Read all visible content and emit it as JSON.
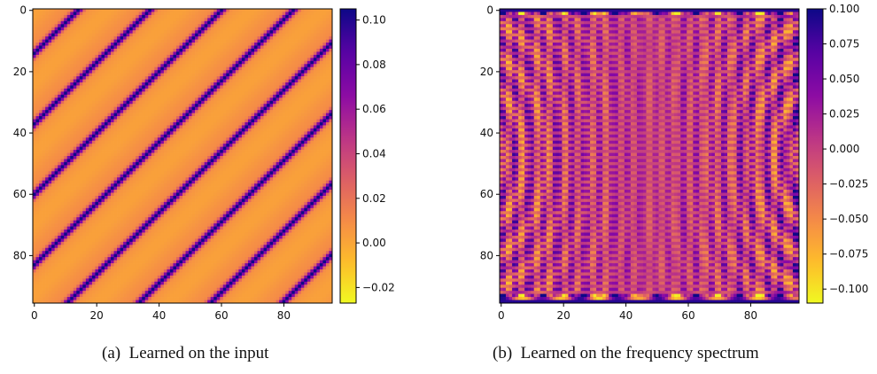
{
  "chart_data": [
    {
      "type": "heatmap",
      "panel": "a",
      "caption_label": "(a)",
      "caption_text": "Learned on the input",
      "title": "",
      "xlabel": "",
      "ylabel": "",
      "matrix_size": [
        96,
        96
      ],
      "xlim": [
        0,
        95
      ],
      "ylim": [
        95,
        0
      ],
      "x_ticks": [
        0,
        20,
        40,
        60,
        80
      ],
      "y_ticks": [
        0,
        20,
        40,
        60,
        80
      ],
      "colormap": "plasma_r",
      "color_range": [
        -0.027,
        0.105
      ],
      "colorbar_ticks": [
        "0.10",
        "0.08",
        "0.06",
        "0.04",
        "0.02",
        "0.00",
        "−0.02"
      ],
      "colorbar_tick_values": [
        0.1,
        0.08,
        0.06,
        0.04,
        0.02,
        0.0,
        -0.02
      ],
      "pattern": "diagonal stripes along the anti-diagonal direction (period ~23 rows/cols), high values on narrow dark bands, low values (~0.0) elsewhere"
    },
    {
      "type": "heatmap",
      "panel": "b",
      "caption_label": "(b)",
      "caption_text": "Learned on the frequency spectrum",
      "title": "",
      "xlabel": "",
      "ylabel": "",
      "matrix_size": [
        96,
        96
      ],
      "xlim": [
        0,
        95
      ],
      "ylim": [
        95,
        0
      ],
      "x_ticks": [
        0,
        20,
        40,
        60,
        80
      ],
      "y_ticks": [
        0,
        20,
        40,
        60,
        80
      ],
      "colormap": "plasma_r",
      "color_range": [
        -0.11,
        0.1
      ],
      "colorbar_ticks": [
        "0.100",
        "0.075",
        "0.050",
        "0.025",
        "0.000",
        "−0.025",
        "−0.050",
        "−0.075",
        "−0.100"
      ],
      "colorbar_tick_values": [
        0.1,
        0.075,
        0.05,
        0.025,
        0.0,
        -0.025,
        -0.05,
        -0.075,
        -0.1
      ],
      "pattern": "alternating horizontal dashed bands every ~2 rows, strong dark bands at top and bottom rows, curved interference arcs near left and right edges"
    }
  ]
}
